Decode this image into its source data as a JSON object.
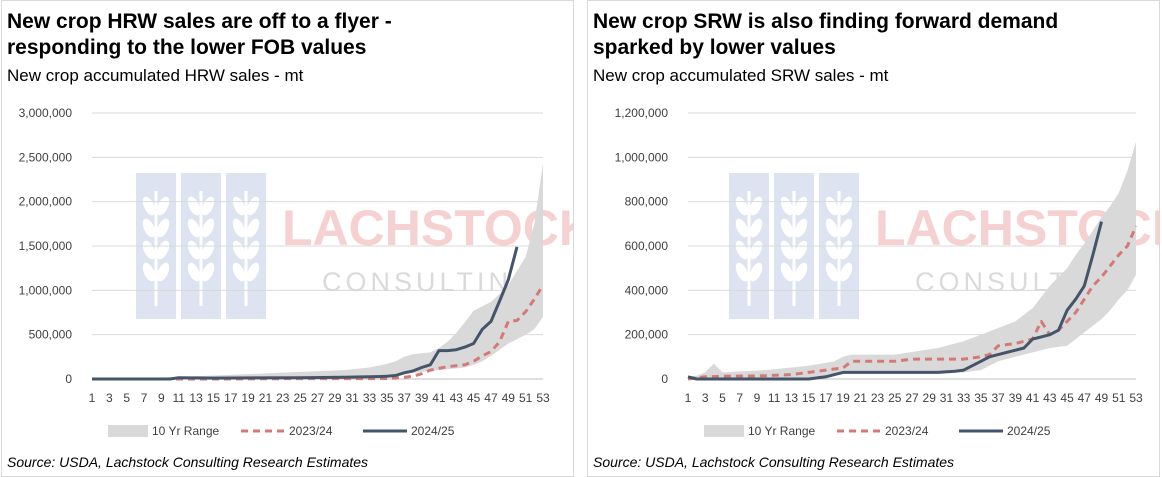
{
  "panels": [
    {
      "title_line1": "New crop HRW sales are off to a flyer -",
      "title_line2": "responding to the lower FOB values",
      "subtitle": "New crop accumulated HRW sales - mt",
      "source": "Source: USDA, Lachstock Consulting Research Estimates"
    },
    {
      "title_line1": "New crop SRW is also finding forward demand",
      "title_line2": "sparked by lower values",
      "subtitle": "New crop accumulated SRW sales - mt",
      "source": "Source: USDA, Lachstock Consulting Research Estimates"
    }
  ],
  "watermark": {
    "main": "LACHSTOCK",
    "sub": "CONSULTING"
  },
  "colors": {
    "range": "#d9d9d9",
    "y2324": "#d47a76",
    "y2425": "#44546a"
  },
  "chart_data": [
    {
      "type": "line",
      "ylim": [
        0,
        3000000
      ],
      "y_ticks": [
        0,
        500000,
        1000000,
        1500000,
        2000000,
        2500000,
        3000000
      ],
      "y_tick_labels": [
        "0",
        "500,000",
        "1,000,000",
        "1,500,000",
        "2,000,000",
        "2,500,000",
        "3,000,000"
      ],
      "x_tick_labels": [
        "1",
        "3",
        "5",
        "7",
        "9",
        "11",
        "13",
        "15",
        "17",
        "19",
        "21",
        "23",
        "25",
        "27",
        "29",
        "31",
        "33",
        "35",
        "37",
        "39",
        "41",
        "43",
        "45",
        "47",
        "49",
        "51",
        "53"
      ],
      "legend": [
        "10 Yr Range",
        "2023/24",
        "2024/25"
      ],
      "series": [
        {
          "name": "10 Yr Range",
          "kind": "band",
          "weeks": [
            1,
            5,
            10,
            15,
            20,
            25,
            30,
            33,
            35,
            36,
            37,
            38,
            39,
            40,
            41,
            42,
            43,
            44,
            45,
            46,
            47,
            48,
            49,
            50,
            51,
            52,
            53
          ],
          "low": [
            0,
            0,
            0,
            5000,
            10000,
            15000,
            20000,
            30000,
            40000,
            50000,
            60000,
            70000,
            80000,
            90000,
            100000,
            110000,
            120000,
            130000,
            160000,
            200000,
            260000,
            330000,
            400000,
            450000,
            500000,
            560000,
            700000
          ],
          "high": [
            5000,
            10000,
            20000,
            40000,
            60000,
            80000,
            100000,
            130000,
            170000,
            200000,
            250000,
            280000,
            290000,
            300000,
            350000,
            420000,
            520000,
            640000,
            770000,
            820000,
            870000,
            960000,
            1060000,
            1220000,
            1380000,
            1750000,
            2430000
          ]
        },
        {
          "name": "2023/24",
          "kind": "line",
          "weeks": [
            1,
            5,
            10,
            15,
            20,
            25,
            30,
            33,
            35,
            36,
            37,
            38,
            39,
            40,
            41,
            42,
            43,
            44,
            45,
            46,
            47,
            48,
            49,
            50,
            51,
            52,
            53
          ],
          "values": [
            0,
            0,
            0,
            0,
            2000,
            4000,
            5000,
            5000,
            6000,
            10000,
            20000,
            30000,
            60000,
            100000,
            120000,
            140000,
            150000,
            160000,
            200000,
            260000,
            310000,
            420000,
            650000,
            660000,
            760000,
            900000,
            1060000
          ]
        },
        {
          "name": "2024/25",
          "kind": "line",
          "weeks": [
            1,
            5,
            10,
            11,
            15,
            20,
            25,
            30,
            33,
            35,
            36,
            37,
            38,
            39,
            40,
            41,
            42,
            43,
            44,
            45,
            46,
            47,
            48,
            49,
            50
          ],
          "values": [
            0,
            0,
            0,
            15000,
            10000,
            12000,
            15000,
            20000,
            25000,
            30000,
            40000,
            70000,
            90000,
            130000,
            160000,
            320000,
            320000,
            330000,
            360000,
            400000,
            560000,
            650000,
            880000,
            1120000,
            1490000
          ]
        }
      ]
    },
    {
      "type": "line",
      "ylim": [
        0,
        1200000
      ],
      "y_ticks": [
        0,
        200000,
        400000,
        600000,
        800000,
        1000000,
        1200000
      ],
      "y_tick_labels": [
        "0",
        "200,000",
        "400,000",
        "600,000",
        "800,000",
        "1,000,000",
        "1,200,000"
      ],
      "x_tick_labels": [
        "1",
        "3",
        "5",
        "7",
        "9",
        "11",
        "13",
        "15",
        "17",
        "19",
        "21",
        "23",
        "25",
        "27",
        "29",
        "31",
        "33",
        "35",
        "37",
        "39",
        "41",
        "43",
        "45",
        "47",
        "49",
        "51",
        "53"
      ],
      "legend": [
        "10 Yr Range",
        "2023/24",
        "2024/25"
      ],
      "series": [
        {
          "name": "10 Yr Range",
          "kind": "band",
          "weeks": [
            1,
            2,
            3,
            4,
            5,
            10,
            15,
            18,
            19,
            20,
            25,
            30,
            33,
            35,
            37,
            39,
            41,
            43,
            45,
            46,
            47,
            48,
            49,
            50,
            51,
            52,
            53
          ],
          "low": [
            0,
            0,
            0,
            0,
            0,
            0,
            5000,
            20000,
            30000,
            30000,
            30000,
            30000,
            30000,
            40000,
            80000,
            100000,
            120000,
            140000,
            150000,
            180000,
            210000,
            240000,
            270000,
            310000,
            360000,
            400000,
            470000
          ],
          "high": [
            10000,
            15000,
            30000,
            70000,
            30000,
            40000,
            60000,
            80000,
            100000,
            110000,
            110000,
            140000,
            170000,
            200000,
            230000,
            260000,
            320000,
            420000,
            500000,
            560000,
            610000,
            670000,
            730000,
            780000,
            840000,
            940000,
            1070000
          ]
        },
        {
          "name": "2023/24",
          "kind": "line",
          "weeks": [
            1,
            3,
            5,
            10,
            13,
            15,
            17,
            18,
            19,
            20,
            25,
            27,
            29,
            31,
            33,
            35,
            36,
            37,
            39,
            40,
            41,
            42,
            43,
            44,
            45,
            46,
            47,
            48,
            49,
            50,
            51,
            52,
            53
          ],
          "values": [
            0,
            10000,
            12000,
            15000,
            20000,
            30000,
            40000,
            45000,
            50000,
            80000,
            80000,
            90000,
            90000,
            90000,
            90000,
            100000,
            110000,
            150000,
            160000,
            170000,
            180000,
            260000,
            200000,
            220000,
            260000,
            300000,
            360000,
            420000,
            460000,
            510000,
            560000,
            600000,
            690000
          ]
        },
        {
          "name": "2024/25",
          "kind": "line",
          "weeks": [
            1,
            2,
            5,
            10,
            15,
            17,
            18,
            19,
            20,
            25,
            30,
            32,
            33,
            34,
            35,
            36,
            37,
            39,
            40,
            41,
            42,
            43,
            44,
            45,
            46,
            47,
            48,
            49
          ],
          "values": [
            10000,
            0,
            0,
            0,
            0,
            10000,
            20000,
            30000,
            30000,
            30000,
            30000,
            35000,
            40000,
            60000,
            80000,
            100000,
            110000,
            130000,
            140000,
            180000,
            190000,
            200000,
            220000,
            310000,
            360000,
            420000,
            560000,
            710000
          ]
        }
      ]
    }
  ]
}
